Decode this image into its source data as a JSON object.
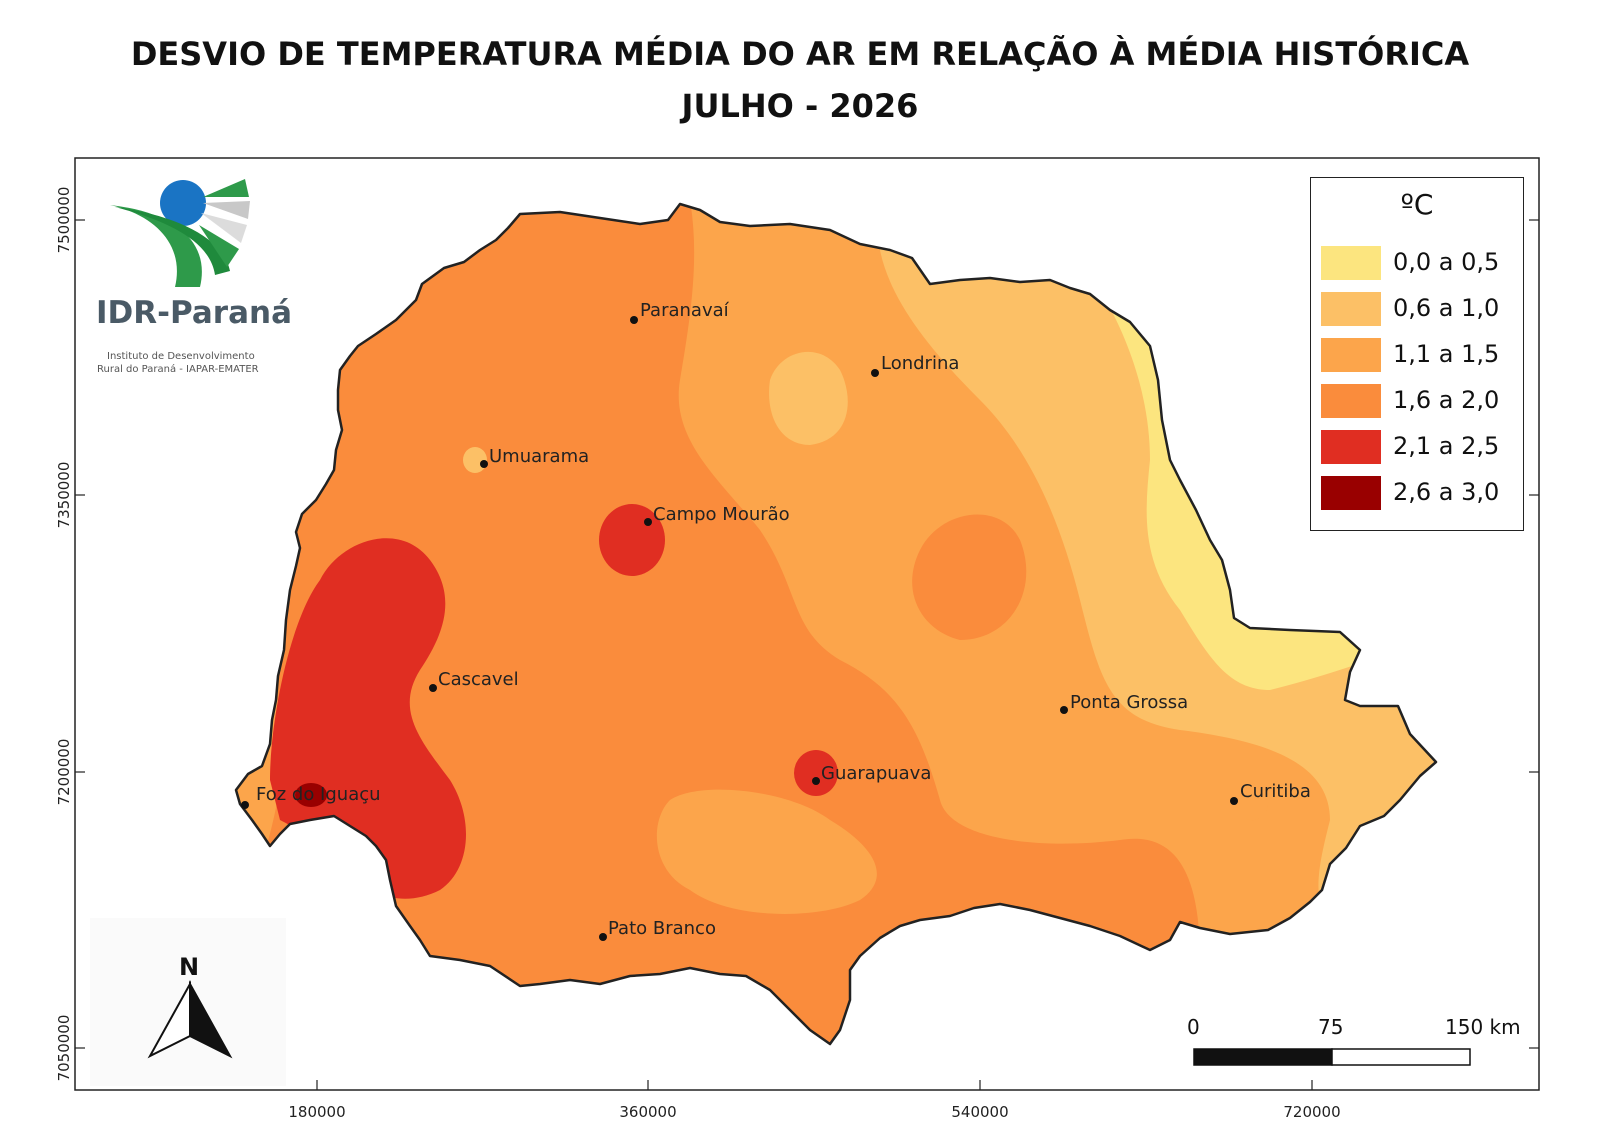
{
  "title": {
    "line1": "DESVIO DE TEMPERATURA MÉDIA DO AR EM RELAÇÃO À MÉDIA HISTÓRICA",
    "line2": "JULHO - 2026"
  },
  "logo": {
    "name": "IDR-Paraná",
    "subtitle_line1": "Instituto de Desenvolvimento",
    "subtitle_line2": "Rural do Paraná - IAPAR-EMATER"
  },
  "legend": {
    "title": "ºC",
    "items": [
      {
        "label": "0,0 a 0,5",
        "color": "#fce57f"
      },
      {
        "label": "0,6 a 1,0",
        "color": "#fcc066"
      },
      {
        "label": "1,1 a 1,5",
        "color": "#fca54b"
      },
      {
        "label": "1,6 a 2,0",
        "color": "#fa8c3c"
      },
      {
        "label": "2,1 a 2,5",
        "color": "#e02e22"
      },
      {
        "label": "2,6 a 3,0",
        "color": "#990000"
      }
    ]
  },
  "cities": [
    {
      "name": "Paranavaí"
    },
    {
      "name": "Londrina"
    },
    {
      "name": "Umuarama"
    },
    {
      "name": "Campo Mourão"
    },
    {
      "name": "Cascavel"
    },
    {
      "name": "Ponta Grossa"
    },
    {
      "name": "Foz do Iguaçu"
    },
    {
      "name": "Guarapuava"
    },
    {
      "name": "Curitiba"
    },
    {
      "name": "Pato Branco"
    }
  ],
  "axes": {
    "x_ticks": [
      "180000",
      "360000",
      "540000",
      "720000"
    ],
    "y_ticks": [
      "7500000",
      "7350000",
      "7200000",
      "7050000"
    ]
  },
  "north_arrow": {
    "label": "N"
  },
  "scale_bar": {
    "labels": [
      "0",
      "75",
      "150 km"
    ]
  }
}
